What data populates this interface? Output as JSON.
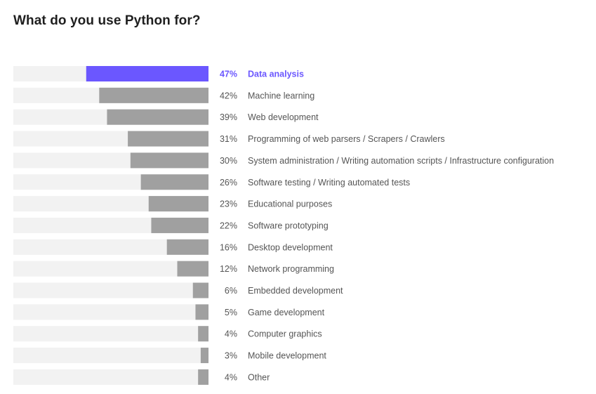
{
  "title": "What do you use Python for?",
  "colors": {
    "bar": "#a0a0a0",
    "highlight": "#6b57ff",
    "track": "#f2f2f2",
    "text": "#555555"
  },
  "chart_data": {
    "type": "bar",
    "orientation": "horizontal",
    "title": "What do you use Python for?",
    "unit": "%",
    "xlim": [
      0,
      100
    ],
    "highlighted": "Data analysis",
    "categories": [
      "Data analysis",
      "Machine learning",
      "Web development",
      "Programming of web parsers / Scrapers / Crawlers",
      "System administration / Writing automation scripts / Infrastructure configuration",
      "Software testing / Writing automated tests",
      "Educational purposes",
      "Software prototyping",
      "Desktop development",
      "Network programming",
      "Embedded development",
      "Game development",
      "Computer graphics",
      "Mobile development",
      "Other"
    ],
    "values": [
      47,
      42,
      39,
      31,
      30,
      26,
      23,
      22,
      16,
      12,
      6,
      5,
      4,
      3,
      4
    ],
    "value_labels": [
      "47%",
      "42%",
      "39%",
      "31%",
      "30%",
      "26%",
      "23%",
      "22%",
      "16%",
      "12%",
      "6%",
      "5%",
      "4%",
      "3%",
      "4%"
    ]
  }
}
